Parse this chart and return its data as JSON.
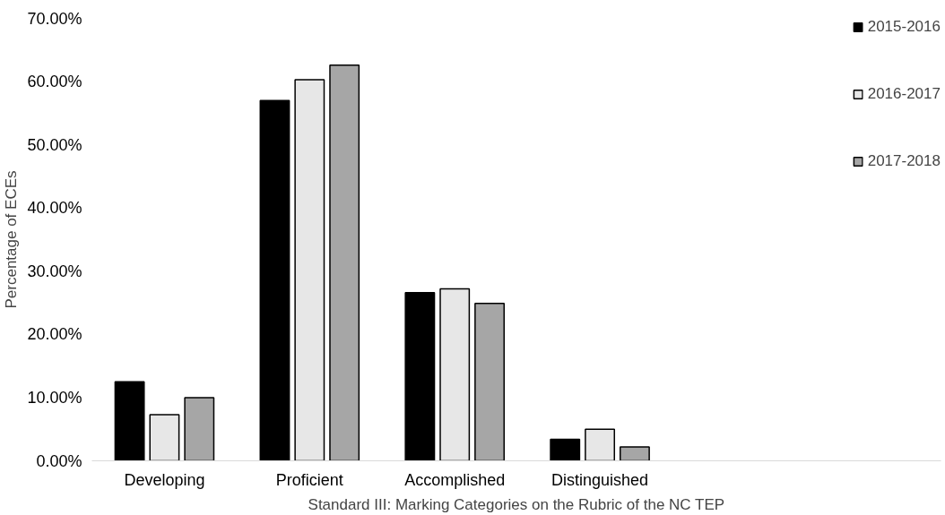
{
  "chart_data": {
    "type": "bar",
    "xlabel": "Standard III: Marking Categories on the Rubric of the NC TEP",
    "ylabel": "Percentage of ECEs",
    "categories": [
      "Developing",
      "Proficient",
      "Accomplished",
      "Distinguished"
    ],
    "series": [
      {
        "name": "2015-2016",
        "color": "#000000",
        "values": [
          12.5,
          57.0,
          26.6,
          3.4
        ]
      },
      {
        "name": "2016-2017",
        "color": "#e7e7e7",
        "values": [
          7.3,
          60.3,
          27.2,
          5.0
        ]
      },
      {
        "name": "2017-2018",
        "color": "#a6a6a6",
        "values": [
          10.0,
          62.6,
          24.9,
          2.2
        ]
      }
    ],
    "ylim": [
      0,
      70
    ],
    "yticks": [
      {
        "value": 0,
        "label": "0.00%"
      },
      {
        "value": 10,
        "label": "10.00%"
      },
      {
        "value": 20,
        "label": "20.00%"
      },
      {
        "value": 30,
        "label": "30.00%"
      },
      {
        "value": 40,
        "label": "40.00%"
      },
      {
        "value": 50,
        "label": "50.00%"
      },
      {
        "value": 60,
        "label": "60.00%"
      },
      {
        "value": 70,
        "label": "70.00%"
      }
    ],
    "grid": false,
    "legend": "right"
  }
}
